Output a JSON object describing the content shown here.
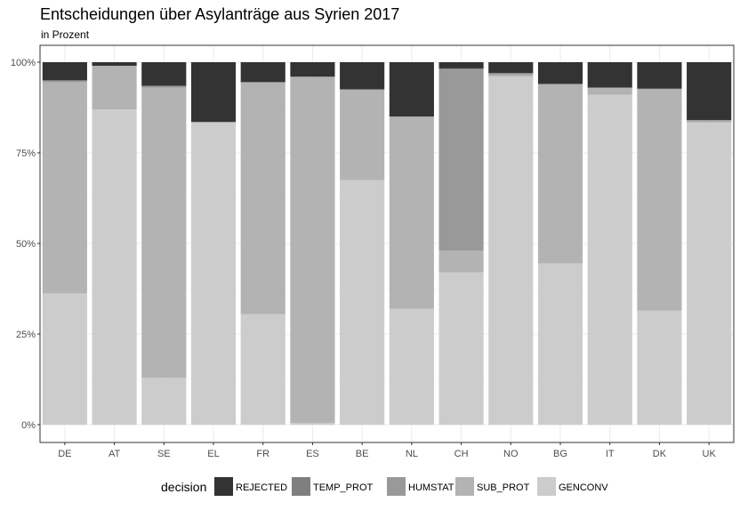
{
  "chart_data": {
    "type": "bar",
    "stacked": "percent",
    "title": "Entscheidungen über Asylanträge aus  Syrien  2017",
    "subtitle": "in Prozent",
    "xlabel": "",
    "ylabel": "",
    "ylim": [
      0,
      100
    ],
    "y_ticks": [
      "0%",
      "25%",
      "50%",
      "75%",
      "100%"
    ],
    "grid": true,
    "legend_title": "decision",
    "legend_position": "bottom",
    "categories": [
      "DE",
      "AT",
      "SE",
      "EL",
      "FR",
      "ES",
      "BE",
      "NL",
      "CH",
      "NO",
      "BG",
      "IT",
      "DK",
      "UK"
    ],
    "series": [
      {
        "name": "GENCONV",
        "color": "#cccccc",
        "values": [
          36.2,
          87.0,
          13.0,
          83.5,
          30.5,
          0.5,
          67.5,
          32.0,
          42.0,
          96.0,
          44.5,
          91.0,
          31.5,
          83.3
        ]
      },
      {
        "name": "SUB_PROT",
        "color": "#b3b3b3",
        "values": [
          58.3,
          12.0,
          80.0,
          0.0,
          64.0,
          95.5,
          25.0,
          53.0,
          6.0,
          0.5,
          49.5,
          2.0,
          61.0,
          0.7
        ]
      },
      {
        "name": "HUMSTAT",
        "color": "#999999",
        "values": [
          0.5,
          0.0,
          0.5,
          0.0,
          0.0,
          0.0,
          0.0,
          0.0,
          50.0,
          0.5,
          0.0,
          0.0,
          0.2,
          0.0
        ]
      },
      {
        "name": "TEMP_PROT",
        "color": "#7f7f7f",
        "values": [
          0.0,
          0.0,
          0.0,
          0.0,
          0.0,
          0.0,
          0.0,
          0.0,
          0.3,
          0.0,
          0.0,
          0.0,
          0.0,
          0.0
        ]
      },
      {
        "name": "REJECTED",
        "color": "#333333",
        "values": [
          5.0,
          1.0,
          6.5,
          16.5,
          5.5,
          4.0,
          7.5,
          15.0,
          1.7,
          3.0,
          6.0,
          7.0,
          7.3,
          16.0
        ]
      }
    ],
    "legend_order": [
      "REJECTED",
      "TEMP_PROT",
      "HUMSTAT",
      "SUB_PROT",
      "GENCONV"
    ]
  }
}
